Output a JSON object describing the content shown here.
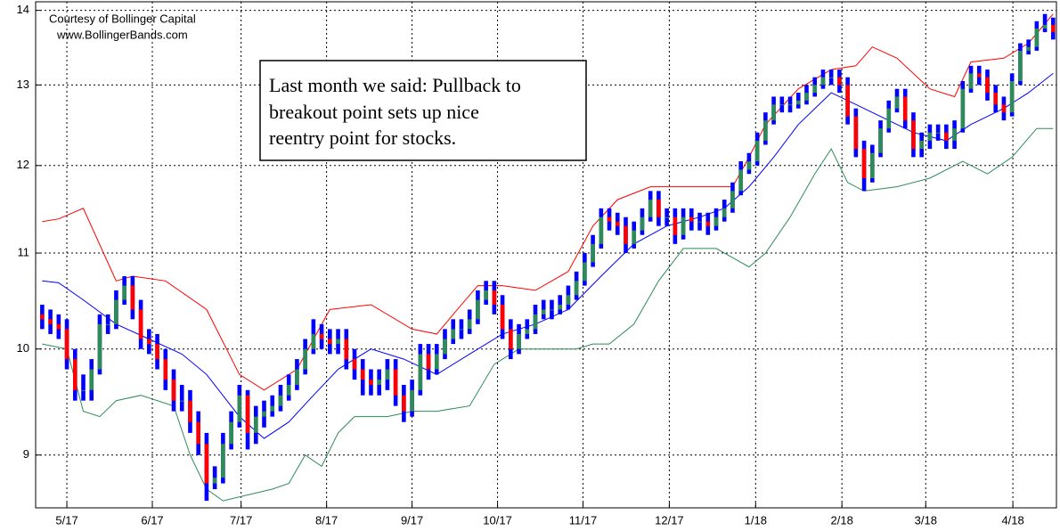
{
  "chart_data": {
    "type": "ohlc",
    "credit": [
      "Courtesy of Bollinger Capital",
      "www.BollingerBands.com"
    ],
    "annotation": [
      "Last month we said: Pullback to",
      "breakout point sets up nice",
      "reentry point for stocks."
    ],
    "log_scale": true,
    "grid": true,
    "ylim": [
      8.54,
      14.12
    ],
    "yticks": [
      9,
      10,
      11,
      12,
      13,
      14
    ],
    "xlim": [
      -0.8,
      123.4
    ],
    "xticks": [
      {
        "value": 3.0,
        "label": "5/17"
      },
      {
        "value": 13.4,
        "label": "6/17"
      },
      {
        "value": 24.2,
        "label": "7/17"
      },
      {
        "value": 34.6,
        "label": "8/17"
      },
      {
        "value": 45.0,
        "label": "9/17"
      },
      {
        "value": 55.4,
        "label": "10/17"
      },
      {
        "value": 65.8,
        "label": "11/17"
      },
      {
        "value": 76.3,
        "label": "12/17"
      },
      {
        "value": 86.8,
        "label": "1/18"
      },
      {
        "value": 97.3,
        "label": "2/18"
      },
      {
        "value": 107.5,
        "label": "3/18"
      },
      {
        "value": 118.1,
        "label": "4/18"
      }
    ],
    "bar_color": "#0000ff",
    "up_color": "#2e8b57",
    "down_color": "#ff0000",
    "open": [
      10.35,
      10.3,
      10.25,
      10.2,
      9.9,
      9.6,
      9.6,
      9.8,
      10.25,
      10.25,
      10.5,
      10.65,
      10.4,
      10.1,
      10.05,
      9.9,
      9.7,
      9.5,
      9.5,
      9.3,
      9.1,
      8.75,
      8.8,
      9.1,
      9.3,
      9.55,
      9.2,
      9.35,
      9.4,
      9.45,
      9.55,
      9.65,
      9.8,
      10.0,
      10.15,
      10.1,
      10.05,
      10.1,
      9.9,
      9.8,
      9.7,
      9.65,
      9.7,
      9.8,
      9.55,
      9.4,
      9.6,
      9.95,
      9.8,
      9.95,
      10.1,
      10.2,
      10.2,
      10.3,
      10.5,
      10.6,
      10.45,
      10.2,
      10.0,
      10.15,
      10.2,
      10.35,
      10.4,
      10.4,
      10.45,
      10.55,
      10.7,
      10.9,
      11.1,
      11.4,
      11.35,
      11.3,
      11.1,
      11.25,
      11.4,
      11.6,
      11.4,
      11.4,
      11.2,
      11.4,
      11.35,
      11.35,
      11.3,
      11.4,
      11.5,
      11.7,
      11.95,
      12.05,
      12.3,
      12.55,
      12.75,
      12.75,
      12.75,
      12.8,
      12.9,
      13.0,
      13.1,
      13.1,
      13.0,
      12.6,
      12.2,
      11.85,
      12.15,
      12.45,
      12.7,
      12.85,
      12.55,
      12.2,
      12.3,
      12.4,
      12.4,
      12.3,
      12.45,
      12.95,
      13.15,
      13.1,
      12.9,
      12.75,
      12.65,
      13.05,
      13.45,
      13.5,
      13.75,
      13.8
    ],
    "high": [
      10.45,
      10.4,
      10.35,
      10.3,
      10.0,
      9.75,
      9.9,
      10.35,
      10.35,
      10.6,
      10.75,
      10.75,
      10.5,
      10.2,
      10.15,
      10.0,
      9.8,
      9.65,
      9.6,
      9.4,
      9.2,
      8.9,
      9.2,
      9.4,
      9.65,
      9.6,
      9.45,
      9.5,
      9.55,
      9.65,
      9.75,
      9.9,
      10.1,
      10.3,
      10.25,
      10.2,
      10.2,
      10.2,
      10.0,
      9.9,
      9.8,
      9.8,
      9.9,
      9.9,
      9.65,
      9.7,
      10.05,
      10.05,
      10.05,
      10.2,
      10.3,
      10.3,
      10.4,
      10.6,
      10.7,
      10.7,
      10.55,
      10.3,
      10.25,
      10.3,
      10.45,
      10.5,
      10.5,
      10.55,
      10.65,
      10.8,
      11.0,
      11.2,
      11.5,
      11.5,
      11.45,
      11.4,
      11.35,
      11.5,
      11.7,
      11.7,
      11.5,
      11.5,
      11.5,
      11.5,
      11.45,
      11.45,
      11.5,
      11.6,
      11.8,
      12.05,
      12.15,
      12.4,
      12.65,
      12.85,
      12.85,
      12.85,
      12.9,
      13.0,
      13.1,
      13.2,
      13.2,
      13.2,
      13.1,
      12.7,
      12.3,
      12.25,
      12.55,
      12.8,
      12.95,
      12.95,
      12.65,
      12.4,
      12.5,
      12.5,
      12.5,
      12.55,
      13.05,
      13.25,
      13.25,
      13.2,
      13.0,
      12.85,
      13.15,
      13.55,
      13.6,
      13.85,
      13.95,
      13.9
    ],
    "low": [
      10.2,
      10.15,
      10.1,
      9.8,
      9.5,
      9.5,
      9.5,
      9.75,
      10.15,
      10.2,
      10.45,
      10.3,
      10.0,
      9.95,
      9.8,
      9.6,
      9.4,
      9.4,
      9.2,
      9.0,
      8.6,
      8.7,
      8.75,
      9.05,
      9.25,
      9.05,
      9.1,
      9.25,
      9.35,
      9.4,
      9.5,
      9.6,
      9.75,
      9.95,
      10.0,
      9.95,
      9.95,
      9.8,
      9.7,
      9.55,
      9.55,
      9.55,
      9.6,
      9.45,
      9.3,
      9.35,
      9.55,
      9.7,
      9.75,
      9.9,
      10.05,
      10.1,
      10.15,
      10.25,
      10.45,
      10.35,
      10.1,
      9.9,
      9.95,
      10.1,
      10.15,
      10.3,
      10.3,
      10.35,
      10.4,
      10.5,
      10.65,
      10.85,
      11.05,
      11.25,
      11.2,
      11.0,
      11.05,
      11.2,
      11.35,
      11.3,
      11.3,
      11.1,
      11.15,
      11.25,
      11.25,
      11.2,
      11.25,
      11.35,
      11.45,
      11.65,
      11.9,
      12.0,
      12.25,
      12.5,
      12.65,
      12.65,
      12.7,
      12.75,
      12.85,
      12.95,
      13.0,
      12.9,
      12.5,
      12.1,
      11.7,
      11.8,
      12.1,
      12.4,
      12.65,
      12.45,
      12.1,
      12.1,
      12.2,
      12.3,
      12.2,
      12.2,
      12.4,
      12.9,
      13.0,
      12.8,
      12.65,
      12.55,
      12.6,
      13.0,
      13.4,
      13.45,
      13.7,
      13.6
    ],
    "close": [
      10.3,
      10.25,
      10.2,
      9.9,
      9.6,
      9.6,
      9.8,
      10.25,
      10.25,
      10.5,
      10.65,
      10.4,
      10.1,
      10.05,
      9.9,
      9.7,
      9.5,
      9.5,
      9.3,
      9.1,
      8.75,
      8.8,
      9.1,
      9.3,
      9.55,
      9.2,
      9.35,
      9.4,
      9.45,
      9.55,
      9.65,
      9.8,
      10.0,
      10.15,
      10.1,
      10.05,
      10.1,
      9.9,
      9.8,
      9.7,
      9.65,
      9.7,
      9.8,
      9.55,
      9.4,
      9.6,
      9.95,
      9.8,
      9.95,
      10.1,
      10.2,
      10.2,
      10.3,
      10.5,
      10.6,
      10.45,
      10.2,
      10.0,
      10.15,
      10.2,
      10.35,
      10.4,
      10.4,
      10.45,
      10.55,
      10.7,
      10.9,
      11.1,
      11.4,
      11.35,
      11.3,
      11.1,
      11.25,
      11.4,
      11.6,
      11.4,
      11.4,
      11.2,
      11.4,
      11.35,
      11.35,
      11.3,
      11.4,
      11.5,
      11.7,
      11.95,
      12.05,
      12.3,
      12.55,
      12.75,
      12.75,
      12.75,
      12.8,
      12.9,
      13.0,
      13.1,
      13.1,
      13.0,
      12.6,
      12.2,
      11.85,
      12.15,
      12.45,
      12.7,
      12.85,
      12.55,
      12.2,
      12.3,
      12.4,
      12.4,
      12.3,
      12.45,
      12.95,
      13.15,
      13.1,
      12.9,
      12.75,
      12.65,
      13.05,
      13.45,
      13.5,
      13.75,
      13.8,
      13.7
    ],
    "series": [
      {
        "color": "#ff0000",
        "x": [
          0,
          2,
          5,
          9,
          11,
          15,
          20,
          24,
          27,
          31,
          35,
          40,
          45,
          48,
          50,
          53,
          56,
          60,
          64,
          67,
          70,
          74,
          80,
          84,
          86,
          88,
          92,
          96,
          99,
          101,
          104,
          108,
          111,
          113,
          117,
          120,
          123
        ],
        "values": [
          11.35,
          11.38,
          11.5,
          10.7,
          10.75,
          10.7,
          10.4,
          9.75,
          9.6,
          9.8,
          10.4,
          10.45,
          10.2,
          10.15,
          10.35,
          10.65,
          10.65,
          10.6,
          10.8,
          11.3,
          11.6,
          11.75,
          11.75,
          11.75,
          12.1,
          12.5,
          12.95,
          13.2,
          13.25,
          13.5,
          13.35,
          12.95,
          12.85,
          13.3,
          13.35,
          13.55,
          13.95
        ]
      },
      {
        "color": "#0000ff",
        "x": [
          0,
          2,
          5,
          9,
          13,
          17,
          20,
          24,
          27,
          30,
          33,
          36,
          40,
          44,
          48,
          52,
          56,
          60,
          64,
          68,
          72,
          76,
          80,
          83,
          86,
          89,
          92,
          96,
          99,
          102,
          106,
          110,
          113,
          117,
          120,
          123
        ],
        "values": [
          10.7,
          10.68,
          10.5,
          10.25,
          10.1,
          9.95,
          9.75,
          9.35,
          9.15,
          9.3,
          9.55,
          9.8,
          10.0,
          9.9,
          9.75,
          9.95,
          10.15,
          10.25,
          10.4,
          10.75,
          11.1,
          11.3,
          11.4,
          11.5,
          11.75,
          12.1,
          12.5,
          12.9,
          12.75,
          12.6,
          12.4,
          12.3,
          12.5,
          12.7,
          12.9,
          13.15
        ]
      },
      {
        "color": "#2e8b57",
        "x": [
          0,
          3,
          5,
          7,
          9,
          12,
          16,
          18,
          20,
          22,
          25,
          28,
          30,
          32,
          34,
          36,
          38,
          42,
          45,
          48,
          52,
          55,
          58,
          62,
          65,
          67,
          69,
          72,
          75,
          78,
          82,
          84,
          86,
          88,
          91,
          94,
          96,
          98,
          100,
          104,
          108,
          112,
          115,
          118,
          121,
          123
        ],
        "values": [
          10.05,
          10.0,
          9.4,
          9.35,
          9.5,
          9.55,
          9.45,
          9.0,
          8.7,
          8.6,
          8.65,
          8.7,
          8.75,
          9.0,
          8.9,
          9.2,
          9.35,
          9.35,
          9.4,
          9.4,
          9.45,
          9.85,
          10.0,
          10.0,
          10.0,
          10.05,
          10.05,
          10.25,
          10.7,
          11.05,
          11.05,
          10.95,
          10.85,
          11.0,
          11.4,
          11.9,
          12.2,
          11.8,
          11.7,
          11.75,
          11.85,
          12.05,
          11.9,
          12.1,
          12.45,
          12.45
        ]
      }
    ]
  }
}
